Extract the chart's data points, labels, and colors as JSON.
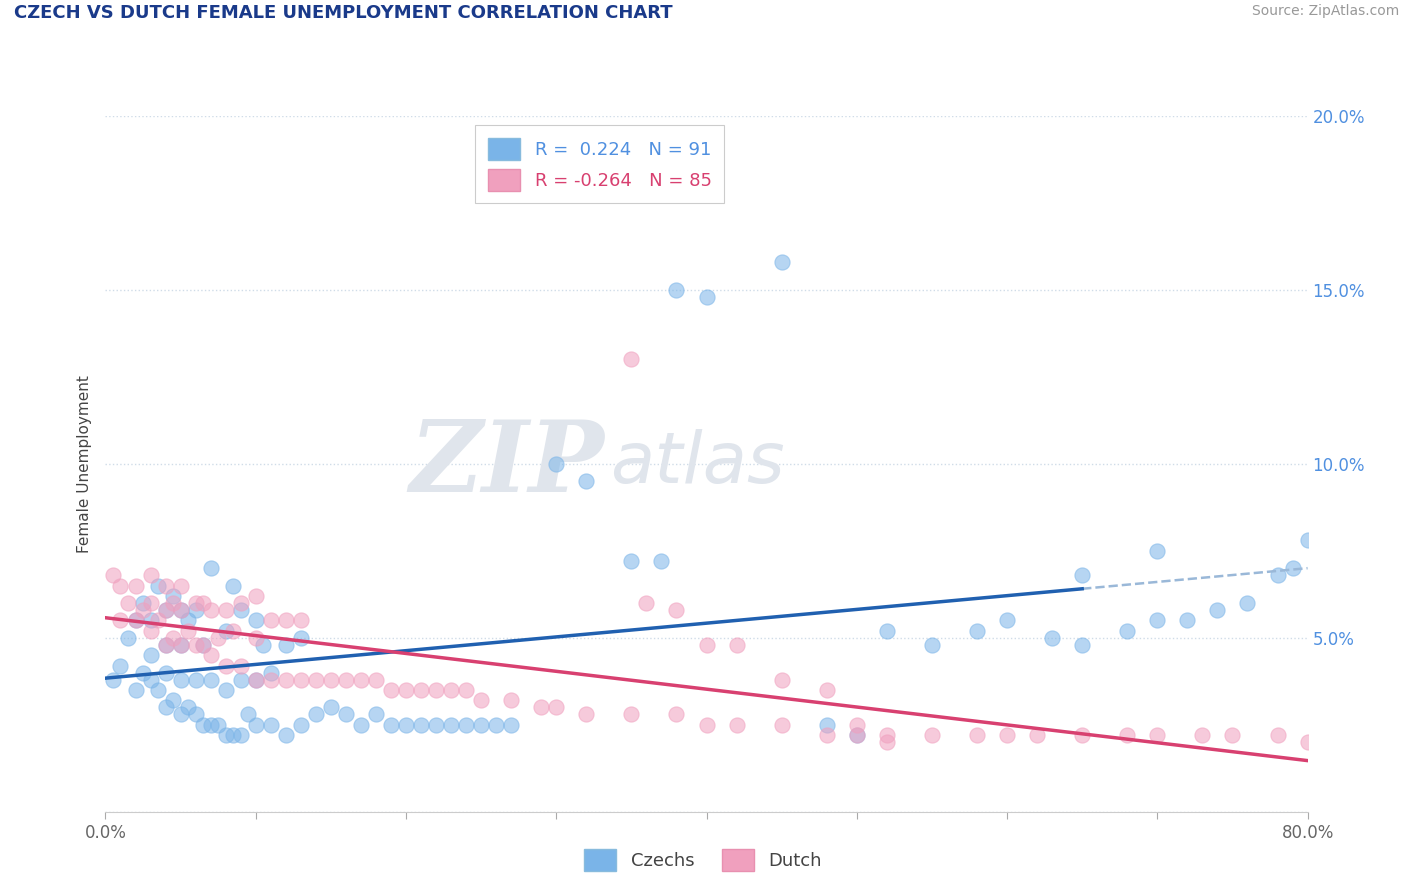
{
  "title": "CZECH VS DUTCH FEMALE UNEMPLOYMENT CORRELATION CHART",
  "source": "Source: ZipAtlas.com",
  "ylabel": "Female Unemployment",
  "xlim": [
    0.0,
    0.8
  ],
  "ylim": [
    0.0,
    0.2
  ],
  "xticks": [
    0.0,
    0.1,
    0.2,
    0.3,
    0.4,
    0.5,
    0.6,
    0.7,
    0.8
  ],
  "xticklabels": [
    "0.0%",
    "",
    "",
    "",
    "",
    "",
    "",
    "",
    "80.0%"
  ],
  "yticks": [
    0.0,
    0.05,
    0.1,
    0.15,
    0.2
  ],
  "yticklabels": [
    "",
    "5.0%",
    "10.0%",
    "15.0%",
    "20.0%"
  ],
  "czechs_R": 0.224,
  "czechs_N": 91,
  "dutch_R": -0.264,
  "dutch_N": 85,
  "czechs_color": "#7ab4e8",
  "dutch_color": "#f0a0be",
  "trend_czechs_color": "#2060b0",
  "trend_dutch_color": "#d84070",
  "trend_dashed_color": "#9ab8d8",
  "background_color": "#ffffff",
  "grid_color": "#d0dce8",
  "watermark_zip": "ZIP",
  "watermark_atlas": "atlas",
  "legend_czechs_label": "Czechs",
  "legend_dutch_label": "Dutch",
  "title_color": "#1a3a8a",
  "source_color": "#999999",
  "axis_label_color": "#444444",
  "right_tick_color": "#5090e0",
  "czechs_x": [
    0.005,
    0.01,
    0.015,
    0.02,
    0.02,
    0.025,
    0.025,
    0.03,
    0.03,
    0.03,
    0.035,
    0.035,
    0.04,
    0.04,
    0.04,
    0.04,
    0.045,
    0.045,
    0.05,
    0.05,
    0.05,
    0.05,
    0.055,
    0.055,
    0.06,
    0.06,
    0.06,
    0.065,
    0.065,
    0.07,
    0.07,
    0.07,
    0.075,
    0.08,
    0.08,
    0.08,
    0.085,
    0.085,
    0.09,
    0.09,
    0.09,
    0.095,
    0.1,
    0.1,
    0.1,
    0.105,
    0.11,
    0.11,
    0.12,
    0.12,
    0.13,
    0.13,
    0.14,
    0.15,
    0.16,
    0.17,
    0.18,
    0.19,
    0.2,
    0.21,
    0.22,
    0.23,
    0.24,
    0.25,
    0.26,
    0.27,
    0.3,
    0.32,
    0.35,
    0.37,
    0.38,
    0.4,
    0.45,
    0.48,
    0.5,
    0.52,
    0.55,
    0.58,
    0.6,
    0.63,
    0.65,
    0.68,
    0.7,
    0.72,
    0.74,
    0.76,
    0.78,
    0.79,
    0.8,
    0.65,
    0.7
  ],
  "czechs_y": [
    0.038,
    0.042,
    0.05,
    0.035,
    0.055,
    0.04,
    0.06,
    0.038,
    0.045,
    0.055,
    0.035,
    0.065,
    0.03,
    0.04,
    0.048,
    0.058,
    0.032,
    0.062,
    0.028,
    0.038,
    0.048,
    0.058,
    0.03,
    0.055,
    0.028,
    0.038,
    0.058,
    0.025,
    0.048,
    0.025,
    0.038,
    0.07,
    0.025,
    0.022,
    0.035,
    0.052,
    0.022,
    0.065,
    0.022,
    0.038,
    0.058,
    0.028,
    0.025,
    0.038,
    0.055,
    0.048,
    0.025,
    0.04,
    0.022,
    0.048,
    0.025,
    0.05,
    0.028,
    0.03,
    0.028,
    0.025,
    0.028,
    0.025,
    0.025,
    0.025,
    0.025,
    0.025,
    0.025,
    0.025,
    0.025,
    0.025,
    0.1,
    0.095,
    0.072,
    0.072,
    0.15,
    0.148,
    0.158,
    0.025,
    0.022,
    0.052,
    0.048,
    0.052,
    0.055,
    0.05,
    0.048,
    0.052,
    0.055,
    0.055,
    0.058,
    0.06,
    0.068,
    0.07,
    0.078,
    0.068,
    0.075
  ],
  "dutch_x": [
    0.005,
    0.01,
    0.01,
    0.015,
    0.02,
    0.02,
    0.025,
    0.03,
    0.03,
    0.03,
    0.035,
    0.04,
    0.04,
    0.04,
    0.045,
    0.045,
    0.05,
    0.05,
    0.05,
    0.055,
    0.06,
    0.06,
    0.065,
    0.065,
    0.07,
    0.07,
    0.075,
    0.08,
    0.08,
    0.085,
    0.09,
    0.09,
    0.1,
    0.1,
    0.1,
    0.11,
    0.11,
    0.12,
    0.12,
    0.13,
    0.13,
    0.14,
    0.15,
    0.16,
    0.17,
    0.18,
    0.19,
    0.2,
    0.21,
    0.22,
    0.23,
    0.24,
    0.25,
    0.27,
    0.29,
    0.3,
    0.32,
    0.35,
    0.38,
    0.4,
    0.42,
    0.45,
    0.48,
    0.5,
    0.52,
    0.55,
    0.58,
    0.6,
    0.62,
    0.65,
    0.68,
    0.7,
    0.73,
    0.75,
    0.78,
    0.8,
    0.35,
    0.36,
    0.38,
    0.4,
    0.42,
    0.45,
    0.48,
    0.5,
    0.52
  ],
  "dutch_y": [
    0.068,
    0.055,
    0.065,
    0.06,
    0.055,
    0.065,
    0.058,
    0.052,
    0.06,
    0.068,
    0.055,
    0.048,
    0.058,
    0.065,
    0.05,
    0.06,
    0.048,
    0.058,
    0.065,
    0.052,
    0.048,
    0.06,
    0.048,
    0.06,
    0.045,
    0.058,
    0.05,
    0.042,
    0.058,
    0.052,
    0.042,
    0.06,
    0.038,
    0.05,
    0.062,
    0.038,
    0.055,
    0.038,
    0.055,
    0.038,
    0.055,
    0.038,
    0.038,
    0.038,
    0.038,
    0.038,
    0.035,
    0.035,
    0.035,
    0.035,
    0.035,
    0.035,
    0.032,
    0.032,
    0.03,
    0.03,
    0.028,
    0.028,
    0.028,
    0.025,
    0.025,
    0.025,
    0.022,
    0.022,
    0.022,
    0.022,
    0.022,
    0.022,
    0.022,
    0.022,
    0.022,
    0.022,
    0.022,
    0.022,
    0.022,
    0.02,
    0.13,
    0.06,
    0.058,
    0.048,
    0.048,
    0.038,
    0.035,
    0.025,
    0.02
  ]
}
